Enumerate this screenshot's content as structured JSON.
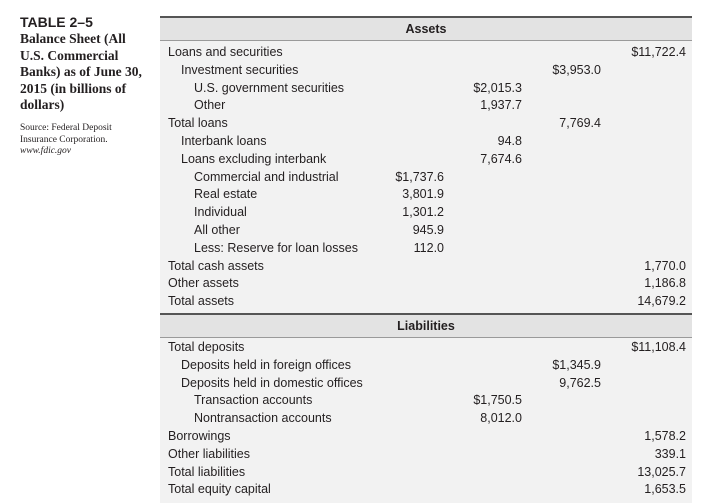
{
  "sidebar": {
    "label": "TABLE 2–5",
    "title": "Balance Sheet (All U.S. Commercial Banks) as of June 30, 2015 (in billions of dollars)",
    "source": "Source: Federal Deposit Insurance Corporation.",
    "url": "www.fdic.gov"
  },
  "table": {
    "sections": [
      {
        "heading": "Assets",
        "rows": [
          {
            "label": "Loans and securities",
            "value": "$11,722.4"
          },
          {
            "label": "Investment securities",
            "value": "$3,953.0"
          },
          {
            "label": "U.S. government securities",
            "value": "$2,015.3"
          },
          {
            "label": "Other",
            "value": "1,937.7"
          },
          {
            "label": "Total loans",
            "value": "7,769.4"
          },
          {
            "label": "Interbank loans",
            "value": "94.8"
          },
          {
            "label": "Loans excluding interbank",
            "value": "7,674.6"
          },
          {
            "label": "Commercial and industrial",
            "value": "$1,737.6"
          },
          {
            "label": "Real estate",
            "value": "3,801.9"
          },
          {
            "label": "Individual",
            "value": "1,301.2"
          },
          {
            "label": "All other",
            "value": "945.9"
          },
          {
            "label": "Less: Reserve for loan losses",
            "value": "112.0"
          },
          {
            "label": "Total cash assets",
            "value": "1,770.0"
          },
          {
            "label": "Other assets",
            "value": "1,186.8"
          },
          {
            "label": "Total assets",
            "value": "14,679.2"
          }
        ]
      },
      {
        "heading": "Liabilities",
        "rows": [
          {
            "label": "Total deposits",
            "value": "$11,108.4"
          },
          {
            "label": "Deposits held in foreign offices",
            "value": "$1,345.9"
          },
          {
            "label": "Deposits held in domestic offices",
            "value": "9,762.5"
          },
          {
            "label": "Transaction accounts",
            "value": "$1,750.5"
          },
          {
            "label": "Nontransaction accounts",
            "value": "8,012.0"
          },
          {
            "label": "Borrowings",
            "value": "1,578.2"
          },
          {
            "label": "Other liabilities",
            "value": "339.1"
          },
          {
            "label": "Total liabilities",
            "value": "13,025.7"
          },
          {
            "label": "Total equity capital",
            "value": "1,653.5"
          }
        ]
      }
    ]
  }
}
